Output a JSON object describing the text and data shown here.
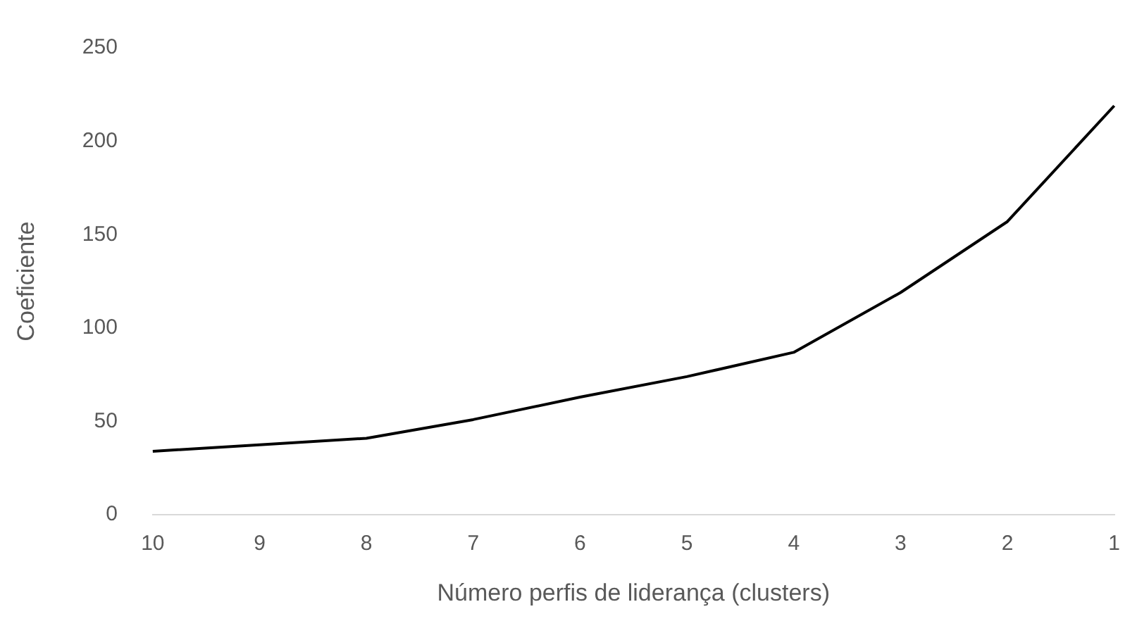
{
  "chart_data": {
    "type": "line",
    "xlabel": "Número perfis de liderança (clusters)",
    "ylabel": "Coeficiente",
    "categories": [
      "10",
      "9",
      "8",
      "7",
      "6",
      "5",
      "4",
      "3",
      "2",
      "1"
    ],
    "series": [
      {
        "color": "#000000",
        "values": [
          34,
          37.5,
          41,
          51,
          63,
          74,
          87,
          119,
          157,
          219
        ]
      }
    ],
    "ylim": [
      0,
      250
    ],
    "yticks": [
      0,
      50,
      100,
      150,
      200,
      250
    ],
    "grid": false,
    "legend": false,
    "marker": "none",
    "line_style": "solid"
  }
}
